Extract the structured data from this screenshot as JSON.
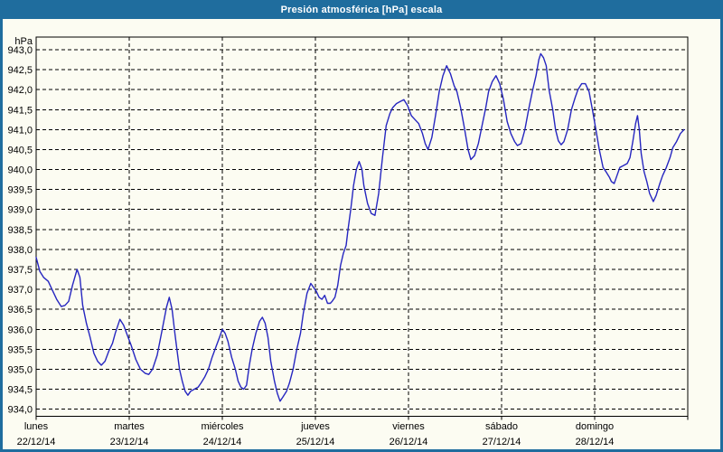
{
  "window": {
    "title": "Presión atmosférica [hPa] escala",
    "title_bar_color": "#1f6d9e",
    "border_color": "#1f6d9e",
    "background_color": "#fcfcf2"
  },
  "chart_data": {
    "type": "line",
    "title": "Presión atmosférica [hPa] escala",
    "unit_label": "hPa",
    "ylabel": "hPa",
    "ylim": [
      934.0,
      943.0
    ],
    "ytick_step": 0.5,
    "ytick_labels": [
      "943,0",
      "942,5",
      "942,0",
      "941,5",
      "941,0",
      "940,5",
      "940,0",
      "939,5",
      "939,0",
      "938,5",
      "938,0",
      "937,5",
      "937,0",
      "936,5",
      "936,0",
      "935,5",
      "935,0",
      "934,5",
      "934,0"
    ],
    "grid": true,
    "grid_color": "#000000",
    "line_color": "#2626c0",
    "frame_color": "#000000",
    "x_days": [
      {
        "name": "lunes",
        "date": "22/12/14"
      },
      {
        "name": "martes",
        "date": "23/12/14"
      },
      {
        "name": "miércoles",
        "date": "24/12/14"
      },
      {
        "name": "jueves",
        "date": "25/12/14"
      },
      {
        "name": "viernes",
        "date": "26/12/14"
      },
      {
        "name": "sábado",
        "date": "27/12/14"
      },
      {
        "name": "domingo",
        "date": "28/12/14"
      }
    ],
    "x_range_days": [
      0,
      7
    ],
    "series": [
      {
        "name": "Presión atmosférica",
        "points": [
          [
            0.0,
            937.8
          ],
          [
            0.04,
            937.45
          ],
          [
            0.08,
            937.3
          ],
          [
            0.13,
            937.2
          ],
          [
            0.17,
            937.0
          ],
          [
            0.22,
            936.75
          ],
          [
            0.27,
            936.57
          ],
          [
            0.31,
            936.6
          ],
          [
            0.35,
            936.7
          ],
          [
            0.39,
            937.1
          ],
          [
            0.44,
            937.5
          ],
          [
            0.47,
            937.3
          ],
          [
            0.5,
            936.6
          ],
          [
            0.54,
            936.15
          ],
          [
            0.58,
            935.8
          ],
          [
            0.62,
            935.4
          ],
          [
            0.66,
            935.2
          ],
          [
            0.7,
            935.1
          ],
          [
            0.74,
            935.2
          ],
          [
            0.78,
            935.45
          ],
          [
            0.82,
            935.65
          ],
          [
            0.85,
            935.9
          ],
          [
            0.9,
            936.25
          ],
          [
            0.94,
            936.1
          ],
          [
            0.98,
            935.85
          ],
          [
            1.02,
            935.6
          ],
          [
            1.07,
            935.25
          ],
          [
            1.12,
            935.0
          ],
          [
            1.17,
            934.9
          ],
          [
            1.21,
            934.87
          ],
          [
            1.25,
            935.0
          ],
          [
            1.3,
            935.35
          ],
          [
            1.35,
            935.95
          ],
          [
            1.4,
            936.55
          ],
          [
            1.43,
            936.8
          ],
          [
            1.46,
            936.5
          ],
          [
            1.49,
            935.9
          ],
          [
            1.52,
            935.35
          ],
          [
            1.54,
            935.0
          ],
          [
            1.57,
            934.7
          ],
          [
            1.6,
            934.45
          ],
          [
            1.63,
            934.35
          ],
          [
            1.66,
            934.45
          ],
          [
            1.7,
            934.5
          ],
          [
            1.74,
            934.55
          ],
          [
            1.77,
            934.65
          ],
          [
            1.81,
            934.8
          ],
          [
            1.85,
            935.0
          ],
          [
            1.89,
            935.3
          ],
          [
            1.93,
            935.55
          ],
          [
            1.97,
            935.8
          ],
          [
            2.0,
            936.0
          ],
          [
            2.03,
            935.9
          ],
          [
            2.06,
            935.7
          ],
          [
            2.1,
            935.3
          ],
          [
            2.14,
            935.0
          ],
          [
            2.17,
            934.7
          ],
          [
            2.2,
            934.55
          ],
          [
            2.23,
            934.5
          ],
          [
            2.26,
            934.6
          ],
          [
            2.29,
            935.1
          ],
          [
            2.32,
            935.5
          ],
          [
            2.36,
            935.9
          ],
          [
            2.4,
            936.2
          ],
          [
            2.43,
            936.3
          ],
          [
            2.46,
            936.15
          ],
          [
            2.49,
            935.8
          ],
          [
            2.52,
            935.2
          ],
          [
            2.56,
            934.7
          ],
          [
            2.59,
            934.4
          ],
          [
            2.62,
            934.2
          ],
          [
            2.65,
            934.3
          ],
          [
            2.69,
            934.45
          ],
          [
            2.72,
            934.65
          ],
          [
            2.76,
            935.0
          ],
          [
            2.8,
            935.5
          ],
          [
            2.84,
            935.9
          ],
          [
            2.87,
            936.4
          ],
          [
            2.91,
            936.9
          ],
          [
            2.95,
            937.15
          ],
          [
            2.98,
            937.05
          ],
          [
            3.01,
            936.95
          ],
          [
            3.04,
            936.8
          ],
          [
            3.07,
            936.75
          ],
          [
            3.1,
            936.85
          ],
          [
            3.13,
            936.65
          ],
          [
            3.16,
            936.65
          ],
          [
            3.18,
            936.7
          ],
          [
            3.21,
            936.8
          ],
          [
            3.24,
            937.1
          ],
          [
            3.27,
            937.6
          ],
          [
            3.3,
            937.9
          ],
          [
            3.33,
            938.1
          ],
          [
            3.35,
            938.5
          ],
          [
            3.38,
            939.0
          ],
          [
            3.41,
            939.6
          ],
          [
            3.44,
            940.0
          ],
          [
            3.47,
            940.2
          ],
          [
            3.5,
            940.0
          ],
          [
            3.52,
            939.6
          ],
          [
            3.56,
            939.15
          ],
          [
            3.6,
            938.9
          ],
          [
            3.64,
            938.85
          ],
          [
            3.68,
            939.4
          ],
          [
            3.72,
            940.3
          ],
          [
            3.76,
            941.1
          ],
          [
            3.8,
            941.4
          ],
          [
            3.83,
            941.55
          ],
          [
            3.87,
            941.65
          ],
          [
            3.91,
            941.7
          ],
          [
            3.95,
            941.75
          ],
          [
            3.99,
            941.6
          ],
          [
            4.03,
            941.35
          ],
          [
            4.07,
            941.25
          ],
          [
            4.11,
            941.15
          ],
          [
            4.15,
            940.9
          ],
          [
            4.18,
            940.65
          ],
          [
            4.21,
            940.5
          ],
          [
            4.25,
            940.8
          ],
          [
            4.29,
            941.35
          ],
          [
            4.33,
            941.95
          ],
          [
            4.37,
            942.35
          ],
          [
            4.41,
            942.6
          ],
          [
            4.45,
            942.4
          ],
          [
            4.49,
            942.1
          ],
          [
            4.52,
            941.95
          ],
          [
            4.56,
            941.55
          ],
          [
            4.6,
            941.05
          ],
          [
            4.64,
            940.5
          ],
          [
            4.67,
            940.25
          ],
          [
            4.71,
            940.35
          ],
          [
            4.75,
            940.65
          ],
          [
            4.79,
            941.1
          ],
          [
            4.83,
            941.55
          ],
          [
            4.86,
            941.95
          ],
          [
            4.9,
            942.2
          ],
          [
            4.94,
            942.35
          ],
          [
            4.98,
            942.15
          ],
          [
            5.02,
            941.75
          ],
          [
            5.06,
            941.2
          ],
          [
            5.1,
            940.9
          ],
          [
            5.14,
            940.7
          ],
          [
            5.17,
            940.6
          ],
          [
            5.21,
            940.65
          ],
          [
            5.25,
            941.0
          ],
          [
            5.29,
            941.5
          ],
          [
            5.33,
            941.95
          ],
          [
            5.37,
            942.35
          ],
          [
            5.4,
            942.75
          ],
          [
            5.42,
            942.9
          ],
          [
            5.45,
            942.8
          ],
          [
            5.48,
            942.6
          ],
          [
            5.51,
            942.0
          ],
          [
            5.55,
            941.5
          ],
          [
            5.58,
            941.0
          ],
          [
            5.61,
            940.72
          ],
          [
            5.64,
            940.62
          ],
          [
            5.67,
            940.7
          ],
          [
            5.71,
            941.0
          ],
          [
            5.75,
            941.5
          ],
          [
            5.79,
            941.8
          ],
          [
            5.82,
            942.0
          ],
          [
            5.86,
            942.15
          ],
          [
            5.9,
            942.15
          ],
          [
            5.94,
            941.95
          ],
          [
            5.98,
            941.45
          ],
          [
            6.02,
            940.9
          ],
          [
            6.05,
            940.5
          ],
          [
            6.09,
            940.05
          ],
          [
            6.12,
            939.95
          ],
          [
            6.16,
            939.8
          ],
          [
            6.18,
            939.7
          ],
          [
            6.21,
            939.65
          ],
          [
            6.24,
            939.85
          ],
          [
            6.27,
            940.05
          ],
          [
            6.31,
            940.1
          ],
          [
            6.35,
            940.15
          ],
          [
            6.38,
            940.3
          ],
          [
            6.41,
            940.7
          ],
          [
            6.44,
            941.15
          ],
          [
            6.46,
            941.35
          ],
          [
            6.48,
            941.0
          ],
          [
            6.5,
            940.4
          ],
          [
            6.53,
            939.95
          ],
          [
            6.56,
            939.7
          ],
          [
            6.59,
            939.4
          ],
          [
            6.63,
            939.2
          ],
          [
            6.66,
            939.35
          ],
          [
            6.7,
            939.65
          ],
          [
            6.73,
            939.85
          ],
          [
            6.77,
            940.05
          ],
          [
            6.81,
            940.3
          ],
          [
            6.84,
            940.55
          ],
          [
            6.88,
            940.7
          ],
          [
            6.92,
            940.9
          ],
          [
            6.96,
            941.0
          ]
        ]
      }
    ]
  }
}
